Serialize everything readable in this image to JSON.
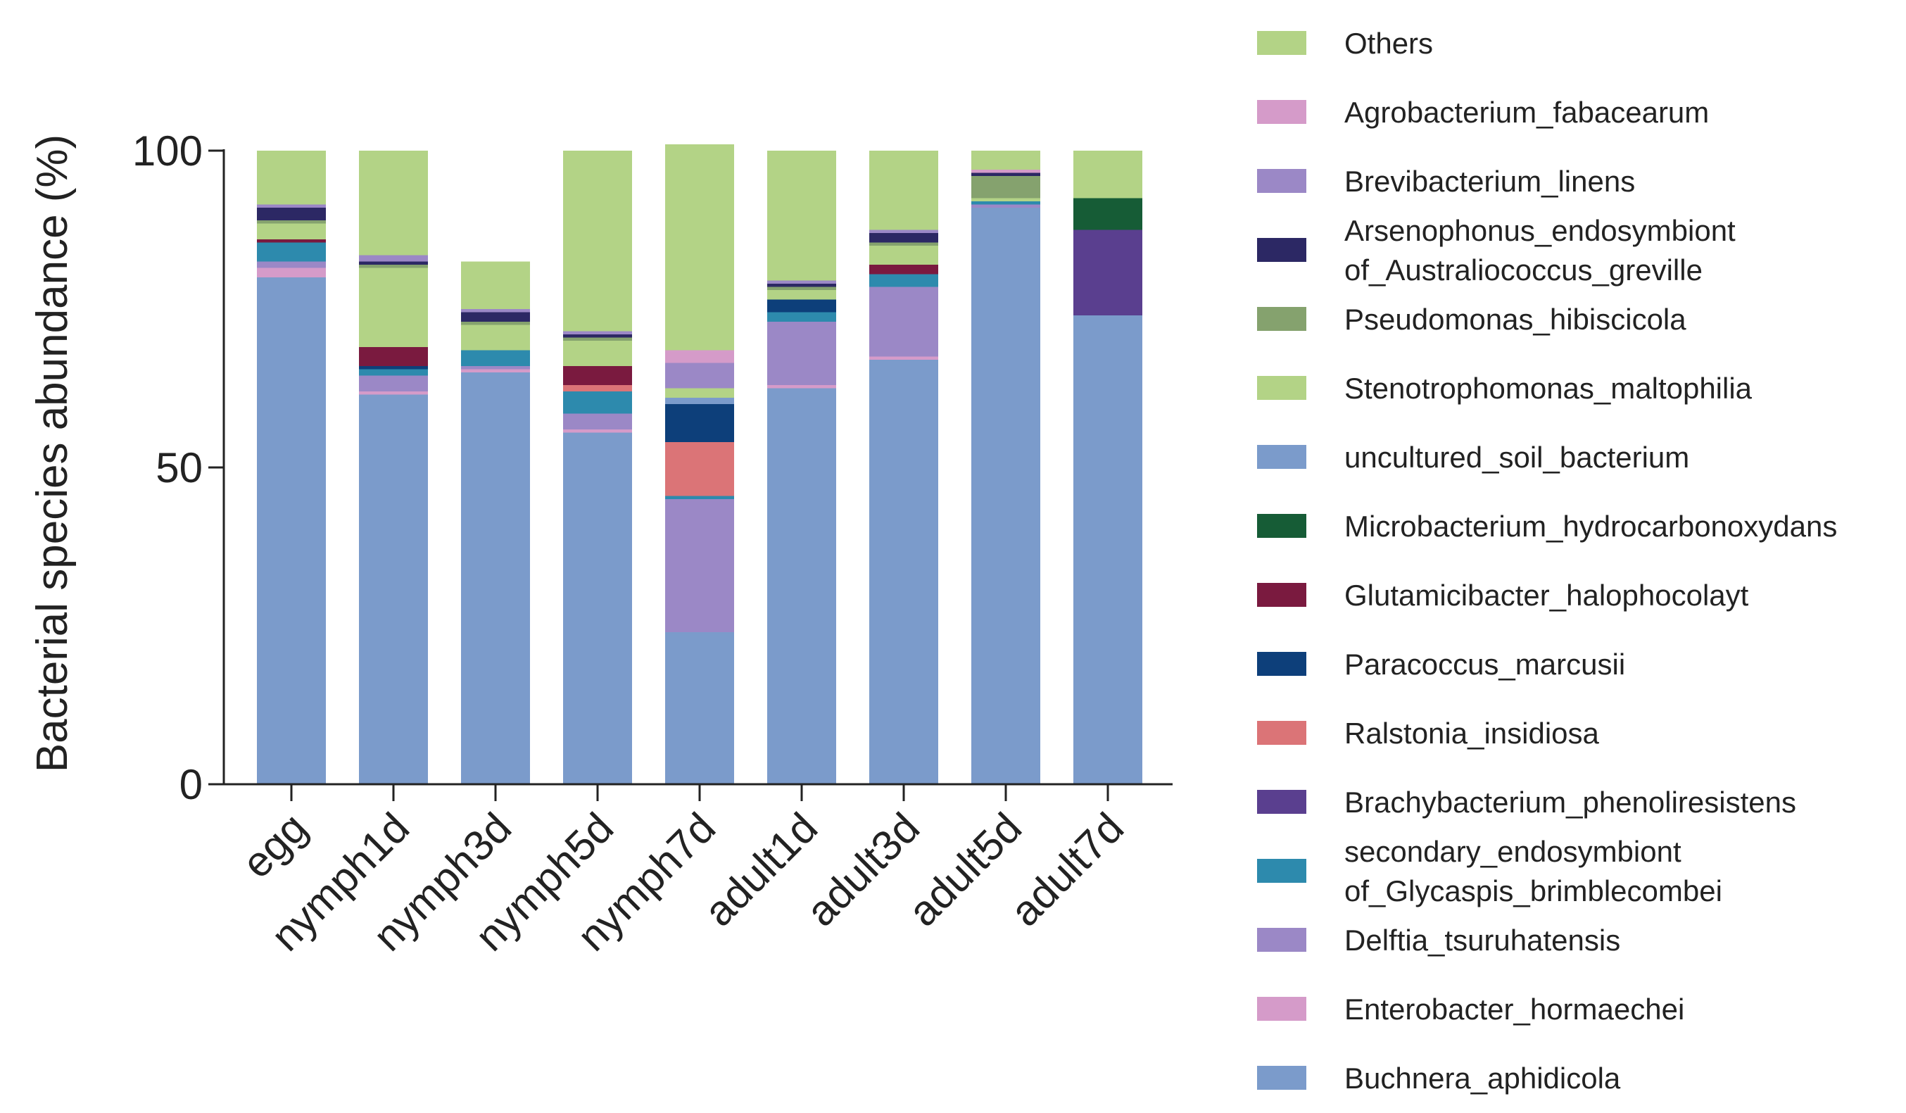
{
  "chart_data": {
    "type": "bar",
    "stacked": true,
    "title": "",
    "xlabel": "",
    "ylabel": "Bacterial species abundance (%)",
    "ylim": [
      0,
      100
    ],
    "yticks": [
      0,
      50,
      100
    ],
    "grid": false,
    "legend_position": "right",
    "categories": [
      "egg",
      "nymph1d",
      "nymph3d",
      "nymph5d",
      "nymph7d",
      "adult1d",
      "adult3d",
      "adult5d",
      "adult7d"
    ],
    "series": [
      {
        "name": "Buchnera_aphidicola",
        "color": "#7b9bcb",
        "values": [
          80.0,
          61.5,
          65.0,
          55.5,
          24.0,
          62.5,
          67.0,
          91.0,
          74.0
        ]
      },
      {
        "name": "Enterobacter_hormaechei",
        "color": "#d59bc9",
        "values": [
          1.5,
          0.5,
          0.5,
          0.5,
          0.0,
          0.5,
          0.5,
          0.0,
          0.0
        ]
      },
      {
        "name": "Delftia_tsuruhatensis",
        "color": "#9b88c6",
        "values": [
          1.0,
          2.5,
          0.5,
          2.5,
          21.0,
          10.0,
          11.0,
          0.5,
          0.0
        ]
      },
      {
        "name": "secondary_endosymbiont of_Glycaspis_brimblecombei",
        "color": "#2d8aad",
        "values": [
          3.0,
          1.0,
          2.5,
          3.5,
          0.5,
          1.5,
          2.0,
          0.5,
          0.0
        ]
      },
      {
        "name": "Brachybacterium_phenoliresistens",
        "color": "#5a3f8f",
        "values": [
          0.0,
          0.0,
          0.0,
          0.0,
          0.0,
          0.0,
          0.0,
          0.0,
          13.5
        ]
      },
      {
        "name": "Ralstonia_insidiosa",
        "color": "#db7477",
        "values": [
          0.0,
          0.0,
          0.0,
          1.0,
          8.5,
          0.0,
          0.0,
          0.0,
          0.0
        ]
      },
      {
        "name": "Paracoccus_marcusii",
        "color": "#0d3f7a",
        "values": [
          0.0,
          0.5,
          0.0,
          0.0,
          6.0,
          2.0,
          0.0,
          0.0,
          0.0
        ]
      },
      {
        "name": "Glutamicibacter_halophocolayt",
        "color": "#7a1a3f",
        "values": [
          0.5,
          3.0,
          0.0,
          3.0,
          0.0,
          0.0,
          1.5,
          0.0,
          0.0
        ]
      },
      {
        "name": "Microbacterium_hydrocarbonoxydans",
        "color": "#165c36",
        "values": [
          0.0,
          0.0,
          0.0,
          0.0,
          0.0,
          0.0,
          0.0,
          0.0,
          5.0
        ]
      },
      {
        "name": "uncultured_soil_bacterium",
        "color": "#7b9bcb",
        "values": [
          0.0,
          0.0,
          0.0,
          0.0,
          1.0,
          0.0,
          0.0,
          0.0,
          0.0
        ]
      },
      {
        "name": "Stenotrophomonas_maltophilia",
        "color": "#b3d386",
        "values": [
          2.5,
          12.5,
          4.0,
          4.0,
          1.5,
          1.5,
          3.0,
          0.5,
          0.5
        ]
      },
      {
        "name": "Pseudomonas_hibiscicola",
        "color": "#85a26e",
        "values": [
          0.5,
          0.5,
          0.5,
          0.5,
          0.0,
          0.5,
          0.5,
          3.5,
          0.0
        ]
      },
      {
        "name": "Arsenophonus_endosymbiont of_Australiococcus_greville",
        "color": "#2c2864",
        "values": [
          2.0,
          0.5,
          1.5,
          0.5,
          0.0,
          0.5,
          1.5,
          0.5,
          0.0
        ]
      },
      {
        "name": "Brevibacterium_linens",
        "color": "#9b88c6",
        "values": [
          0.5,
          1.0,
          0.5,
          0.5,
          4.0,
          0.5,
          0.5,
          0.0,
          0.0
        ]
      },
      {
        "name": "Agrobacterium_fabacearum",
        "color": "#d59bc9",
        "values": [
          0.0,
          0.0,
          0.0,
          0.0,
          2.0,
          0.0,
          0.0,
          0.5,
          0.0
        ]
      },
      {
        "name": "Others",
        "color": "#b3d386",
        "values": [
          8.5,
          16.5,
          7.5,
          28.5,
          32.5,
          20.5,
          12.5,
          3.0,
          7.0
        ]
      }
    ]
  }
}
